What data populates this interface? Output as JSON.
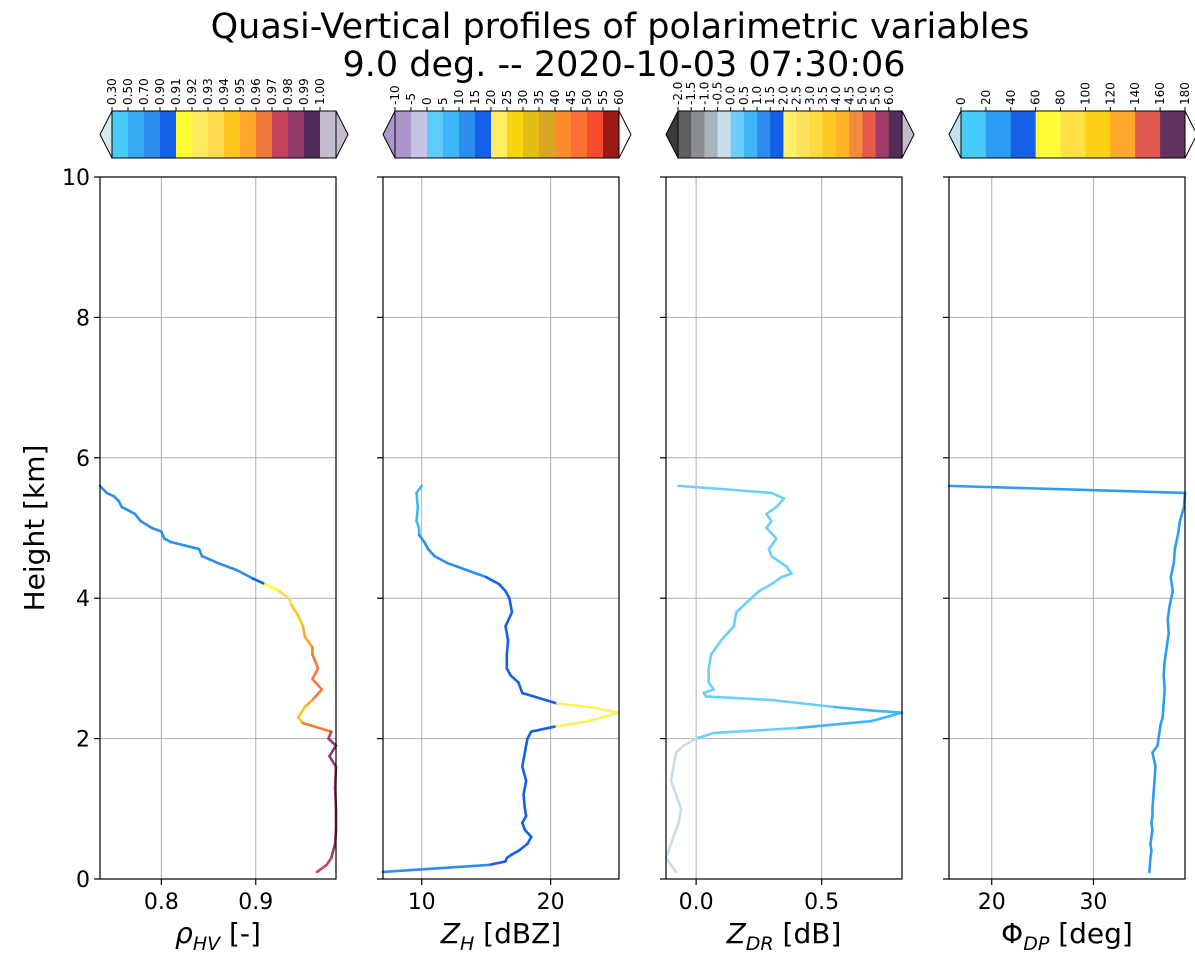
{
  "figure": {
    "title_line1": "Quasi-Vertical profiles of polarimetric variables",
    "title_line2": "9.0 deg. -- 2020-10-03 07:30:06"
  },
  "chart_data": [
    {
      "type": "line",
      "ylabel": "Height [km]",
      "ylim": [
        0,
        10
      ],
      "yticks": [
        0,
        2,
        4,
        6,
        8,
        10
      ],
      "grid": true,
      "xlabel_parts": [
        "ρ",
        "HV",
        " [-]"
      ],
      "xlim": [
        0.735,
        0.985
      ],
      "xticks": [
        0.8,
        0.9
      ],
      "xtick_labels": [
        "0.8",
        "0.9"
      ],
      "colorbar": {
        "labels": [
          "0.30",
          "0.50",
          "0.70",
          "0.90",
          "0.91",
          "0.92",
          "0.93",
          "0.94",
          "0.95",
          "0.96",
          "0.97",
          "0.98",
          "0.99",
          "1.00"
        ],
        "under_color": "#d6e9f2",
        "over_color": "#c4bccc",
        "colors": [
          "#47cbfb",
          "#3aaaf5",
          "#2e8ef0",
          "#1460e6",
          "#fefb30",
          "#fbe95e",
          "#fcd94d",
          "#fcc51a",
          "#fda72c",
          "#f3793a",
          "#c4435c",
          "#923a6a",
          "#512b5a",
          "#c4bccc"
        ]
      },
      "series": [
        {
          "x": [
            0.735,
            0.742,
            0.75,
            0.755,
            0.758,
            0.765,
            0.772,
            0.778,
            0.79,
            0.8,
            0.803,
            0.81,
            0.825,
            0.84,
            0.843,
            0.86,
            0.88,
            0.897,
            0.91,
            0.925,
            0.935,
            0.938,
            0.945,
            0.95,
            0.952,
            0.96,
            0.96,
            0.966,
            0.96,
            0.97,
            0.96,
            0.952,
            0.945,
            0.95,
            0.98,
            0.977,
            0.985,
            0.978,
            0.985,
            0.984,
            0.985,
            0.985,
            0.984,
            0.98,
            0.975,
            0.965
          ],
          "y": [
            5.6,
            5.5,
            5.45,
            5.38,
            5.3,
            5.25,
            5.2,
            5.1,
            5.0,
            4.95,
            4.85,
            4.8,
            4.75,
            4.7,
            4.6,
            4.5,
            4.4,
            4.28,
            4.2,
            4.1,
            4.0,
            3.9,
            3.75,
            3.6,
            3.45,
            3.3,
            3.2,
            3.0,
            2.85,
            2.7,
            2.55,
            2.45,
            2.3,
            2.22,
            2.1,
            2.0,
            1.9,
            1.75,
            1.6,
            1.3,
            1.0,
            0.7,
            0.5,
            0.3,
            0.2,
            0.1
          ]
        }
      ]
    },
    {
      "type": "line",
      "ylim": [
        0,
        10
      ],
      "grid": true,
      "xlabel_parts": [
        "Z",
        "H",
        " [dBZ]"
      ],
      "xlim": [
        7.0,
        25.3
      ],
      "xticks": [
        10,
        20
      ],
      "xtick_labels": [
        "10",
        "20"
      ],
      "colorbar": {
        "labels": [
          "-10",
          "-5",
          "0",
          "5",
          "10",
          "15",
          "20",
          "25",
          "30",
          "35",
          "40",
          "45",
          "50",
          "55",
          "60"
        ],
        "under_color": "#ad96cc",
        "over_color": "#ffffff",
        "colors": [
          "#ad96cc",
          "#c6c4e5",
          "#5ecbfb",
          "#3eb6f9",
          "#2e8ef0",
          "#1460e6",
          "#fdef62",
          "#f8d50e",
          "#e4be12",
          "#dba623",
          "#fd8c2c",
          "#fe7034",
          "#f84b2e",
          "#9a1a18"
        ]
      },
      "series": [
        {
          "x": [
            10.0,
            9.6,
            9.7,
            9.6,
            9.8,
            9.8,
            10.2,
            10.5,
            11.0,
            12.0,
            13.5,
            15.0,
            16.0,
            16.5,
            16.8,
            17.0,
            16.5,
            16.7,
            16.6,
            16.6,
            16.9,
            17.5,
            17.8,
            20.5,
            23.0,
            25.3,
            23.0,
            20.3,
            18.5,
            18.2,
            18.0,
            17.8,
            18.1,
            17.9,
            18.0,
            18.1,
            17.8,
            18.0,
            18.5,
            18.2,
            17.5,
            17.0,
            16.6,
            16.5,
            15.2,
            7.0
          ],
          "y": [
            5.6,
            5.5,
            5.3,
            5.1,
            5.0,
            4.9,
            4.8,
            4.7,
            4.6,
            4.5,
            4.4,
            4.3,
            4.2,
            4.1,
            4.0,
            3.8,
            3.6,
            3.4,
            3.2,
            3.0,
            2.9,
            2.8,
            2.65,
            2.5,
            2.45,
            2.37,
            2.25,
            2.17,
            2.1,
            2.0,
            1.8,
            1.6,
            1.4,
            1.2,
            1.0,
            0.9,
            0.8,
            0.7,
            0.6,
            0.5,
            0.4,
            0.35,
            0.3,
            0.25,
            0.2,
            0.1
          ]
        }
      ]
    },
    {
      "type": "line",
      "ylim": [
        0,
        10
      ],
      "grid": true,
      "xlabel_parts": [
        "Z",
        "DR",
        " [dB]"
      ],
      "xlim": [
        -0.12,
        0.82
      ],
      "xticks": [
        0.0,
        0.5
      ],
      "xtick_labels": [
        "0.0",
        "0.5"
      ],
      "colorbar": {
        "labels": [
          "-2.0",
          "-1.5",
          "-1.0",
          "-0.5",
          "0.0",
          "0.5",
          "1.0",
          "1.5",
          "2.0",
          "2.5",
          "3.0",
          "3.5",
          "4.0",
          "4.5",
          "5.0",
          "5.5",
          "6.0"
        ],
        "under_color": "#3a3a3a",
        "over_color": "#c4bccc",
        "colors": [
          "#5e5e5e",
          "#8a8e92",
          "#a9b3ba",
          "#c8dceb",
          "#6ccffb",
          "#3eb6f9",
          "#2e8ef0",
          "#1460e6",
          "#fef068",
          "#fde35a",
          "#fdd83f",
          "#fdc623",
          "#fdb428",
          "#f68a3c",
          "#e55b4a",
          "#a03a66",
          "#532d5c"
        ]
      },
      "series": [
        {
          "x": [
            -0.07,
            0.12,
            0.3,
            0.35,
            0.32,
            0.28,
            0.3,
            0.28,
            0.32,
            0.29,
            0.3,
            0.36,
            0.38,
            0.34,
            0.3,
            0.25,
            0.22,
            0.16,
            0.15,
            0.1,
            0.06,
            0.05,
            0.05,
            0.07,
            0.03,
            0.04,
            0.3,
            0.55,
            0.7,
            0.82,
            0.7,
            0.4,
            0.07,
            0.0,
            -0.05,
            -0.08,
            -0.09,
            -0.1,
            -0.08,
            -0.06,
            -0.07,
            -0.09,
            -0.11,
            -0.12,
            -0.1,
            -0.08
          ],
          "y": [
            5.6,
            5.55,
            5.5,
            5.42,
            5.3,
            5.2,
            5.1,
            5.0,
            4.85,
            4.7,
            4.6,
            4.45,
            4.35,
            4.3,
            4.2,
            4.1,
            4.0,
            3.8,
            3.6,
            3.4,
            3.2,
            3.0,
            2.8,
            2.7,
            2.65,
            2.6,
            2.55,
            2.45,
            2.4,
            2.37,
            2.25,
            2.15,
            2.08,
            2.0,
            1.9,
            1.8,
            1.6,
            1.4,
            1.2,
            1.0,
            0.8,
            0.6,
            0.4,
            0.3,
            0.2,
            0.1
          ]
        }
      ]
    },
    {
      "type": "line",
      "ylim": [
        0,
        10
      ],
      "grid": true,
      "xlabel_parts": [
        "Φ",
        "DP",
        " [deg]"
      ],
      "xlim": [
        15.8,
        39.0
      ],
      "xticks": [
        20,
        30
      ],
      "xtick_labels": [
        "20",
        "30"
      ],
      "colorbar": {
        "labels": [
          "0",
          "20",
          "40",
          "60",
          "80",
          "100",
          "120",
          "140",
          "160",
          "180"
        ],
        "under_color": "#c4e0f0",
        "over_color": "#ffffff",
        "colors": [
          "#47cbfb",
          "#2e9bf4",
          "#1460e6",
          "#fefb38",
          "#fee145",
          "#fdd014",
          "#fda72c",
          "#e15a50",
          "#62325f"
        ]
      },
      "series": [
        {
          "x": [
            15.8,
            39.0,
            38.9,
            38.5,
            38.3,
            38.0,
            37.9,
            37.6,
            37.8,
            37.5,
            37.3,
            37.4,
            37.2,
            37.0,
            36.9,
            37.0,
            36.9,
            36.8,
            36.6,
            36.5,
            36.4,
            36.3,
            35.8,
            36.1,
            36.0,
            35.9,
            35.8,
            35.8,
            35.7,
            35.8,
            35.7,
            35.6,
            35.7,
            35.6,
            35.5
          ],
          "y": [
            5.6,
            5.5,
            5.3,
            5.1,
            4.9,
            4.7,
            4.5,
            4.3,
            4.1,
            3.9,
            3.7,
            3.5,
            3.3,
            3.1,
            2.9,
            2.7,
            2.5,
            2.3,
            2.2,
            2.1,
            2.0,
            1.9,
            1.8,
            1.6,
            1.4,
            1.2,
            1.0,
            0.9,
            0.8,
            0.7,
            0.6,
            0.5,
            0.4,
            0.3,
            0.1
          ]
        }
      ]
    }
  ]
}
